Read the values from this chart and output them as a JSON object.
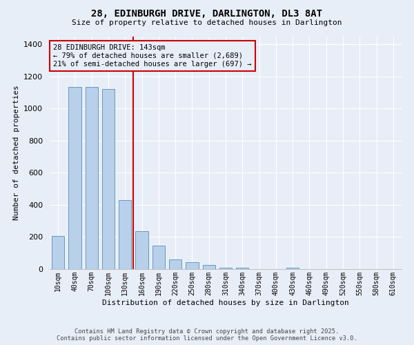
{
  "title": "28, EDINBURGH DRIVE, DARLINGTON, DL3 8AT",
  "subtitle": "Size of property relative to detached houses in Darlington",
  "xlabel": "Distribution of detached houses by size in Darlington",
  "ylabel": "Number of detached properties",
  "categories": [
    "10sqm",
    "40sqm",
    "70sqm",
    "100sqm",
    "130sqm",
    "160sqm",
    "190sqm",
    "220sqm",
    "250sqm",
    "280sqm",
    "310sqm",
    "340sqm",
    "370sqm",
    "400sqm",
    "430sqm",
    "460sqm",
    "490sqm",
    "520sqm",
    "550sqm",
    "580sqm",
    "610sqm"
  ],
  "bar_values": [
    205,
    1135,
    1135,
    1120,
    430,
    237,
    148,
    62,
    42,
    25,
    10,
    8,
    0,
    0,
    10,
    0,
    0,
    0,
    0,
    0,
    0
  ],
  "bar_color": "#b8d0ea",
  "bar_edge_color": "#6699bb",
  "vline_pos": 4.5,
  "vline_color": "#cc0000",
  "annotation_text": "28 EDINBURGH DRIVE: 143sqm\n← 79% of detached houses are smaller (2,689)\n21% of semi-detached houses are larger (697) →",
  "annotation_box_color": "#cc0000",
  "ylim": [
    0,
    1450
  ],
  "yticks": [
    0,
    200,
    400,
    600,
    800,
    1000,
    1200,
    1400
  ],
  "background_color": "#e8eef8",
  "grid_color": "#ffffff",
  "title_fontsize": 10,
  "subtitle_fontsize": 8,
  "footer1": "Contains HM Land Registry data © Crown copyright and database right 2025.",
  "footer2": "Contains public sector information licensed under the Open Government Licence v3.0."
}
